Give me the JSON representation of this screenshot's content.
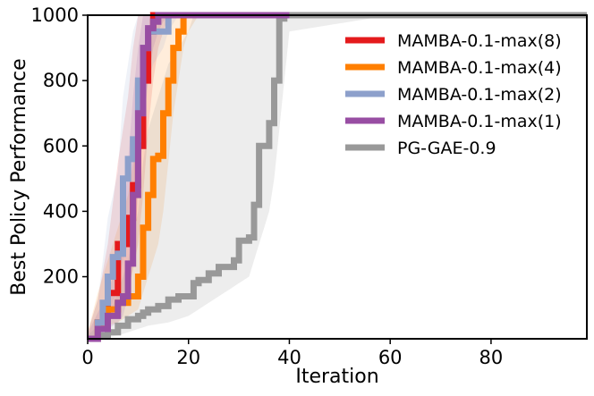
{
  "chart_data": {
    "type": "line",
    "title": "",
    "xlabel": "Iteration",
    "ylabel": "Best Policy Performance",
    "xlim": [
      0,
      99
    ],
    "ylim": [
      10,
      1000
    ],
    "xticks": [
      0,
      20,
      40,
      60,
      80
    ],
    "yticks": [
      200,
      400,
      600,
      800,
      1000
    ],
    "grid": false,
    "legend_position": "top-right",
    "series": [
      {
        "name": "MAMBA-0.1-max(8)",
        "color": "#e41a1c",
        "x": [
          0,
          2,
          4,
          6,
          8,
          9,
          10,
          11,
          12,
          13,
          14,
          15,
          16,
          18,
          20,
          40
        ],
        "y": [
          10,
          60,
          150,
          300,
          380,
          480,
          600,
          800,
          950,
          1000,
          1000,
          1000,
          1000,
          1000,
          1000,
          1000
        ],
        "band_lower": [
          10,
          20,
          60,
          120,
          160,
          220,
          300,
          450,
          650,
          800,
          900,
          950,
          1000,
          1000,
          1000,
          1000
        ],
        "band_upper": [
          30,
          130,
          300,
          550,
          750,
          900,
          1000,
          1000,
          1000,
          1000,
          1000,
          1000,
          1000,
          1000,
          1000,
          1000
        ]
      },
      {
        "name": "MAMBA-0.1-max(4)",
        "color": "#ff7f00",
        "x": [
          0,
          2,
          4,
          6,
          8,
          10,
          11,
          12,
          13,
          14,
          15,
          16,
          17,
          18,
          19,
          20,
          22,
          40
        ],
        "y": [
          10,
          60,
          100,
          120,
          140,
          200,
          350,
          450,
          560,
          570,
          700,
          800,
          900,
          950,
          1000,
          1000,
          1000,
          1000
        ],
        "band_lower": [
          10,
          20,
          50,
          60,
          80,
          100,
          150,
          200,
          250,
          300,
          400,
          550,
          700,
          800,
          900,
          950,
          1000,
          1000
        ],
        "band_upper": [
          30,
          150,
          250,
          350,
          450,
          650,
          800,
          900,
          950,
          1000,
          1000,
          1000,
          1000,
          1000,
          1000,
          1000,
          1000,
          1000
        ]
      },
      {
        "name": "MAMBA-0.1-max(2)",
        "color": "#8da0cb",
        "x": [
          0,
          2,
          3,
          4,
          5,
          6,
          7,
          8,
          9,
          10,
          11,
          12,
          13,
          15,
          16,
          18,
          20,
          40
        ],
        "y": [
          10,
          60,
          120,
          200,
          260,
          270,
          500,
          560,
          620,
          800,
          900,
          950,
          950,
          950,
          1000,
          1000,
          1000,
          1000
        ],
        "band_lower": [
          10,
          20,
          50,
          90,
          120,
          160,
          250,
          300,
          380,
          550,
          700,
          800,
          850,
          900,
          950,
          1000,
          1000,
          1000
        ],
        "band_upper": [
          30,
          130,
          250,
          380,
          450,
          520,
          750,
          850,
          950,
          1000,
          1000,
          1000,
          1000,
          1000,
          1000,
          1000,
          1000,
          1000
        ]
      },
      {
        "name": "MAMBA-0.1-max(1)",
        "color": "#984ea3",
        "x": [
          0,
          2,
          4,
          6,
          7,
          8,
          9,
          10,
          11,
          12,
          13,
          14,
          15,
          16,
          18,
          20,
          40
        ],
        "y": [
          10,
          40,
          80,
          120,
          140,
          240,
          450,
          700,
          900,
          960,
          980,
          1000,
          1000,
          1000,
          1000,
          1000,
          1000
        ],
        "band_lower": [
          10,
          15,
          40,
          60,
          80,
          140,
          250,
          450,
          650,
          800,
          900,
          950,
          980,
          1000,
          1000,
          1000,
          1000
        ],
        "band_upper": [
          25,
          90,
          150,
          250,
          350,
          550,
          750,
          900,
          1000,
          1000,
          1000,
          1000,
          1000,
          1000,
          1000,
          1000,
          1000
        ]
      },
      {
        "name": "PG-GAE-0.9",
        "color": "#999999",
        "x": [
          0,
          2,
          4,
          6,
          8,
          10,
          11,
          12,
          14,
          16,
          18,
          20,
          21,
          22,
          24,
          26,
          28,
          29,
          30,
          32,
          33,
          34,
          35,
          36,
          37,
          38,
          39,
          40,
          60,
          99
        ],
        "y": [
          10,
          20,
          30,
          50,
          70,
          80,
          90,
          100,
          110,
          130,
          140,
          140,
          180,
          190,
          210,
          230,
          230,
          250,
          310,
          320,
          420,
          600,
          600,
          670,
          800,
          990,
          1000,
          1000,
          1000,
          1000
        ],
        "band_lower": [
          10,
          12,
          15,
          20,
          30,
          40,
          45,
          50,
          55,
          60,
          70,
          80,
          90,
          100,
          120,
          140,
          160,
          170,
          180,
          200,
          250,
          300,
          350,
          400,
          500,
          650,
          800,
          950,
          1000,
          1000
        ],
        "band_upper": [
          20,
          50,
          80,
          150,
          250,
          400,
          550,
          650,
          750,
          850,
          900,
          950,
          1000,
          1000,
          1000,
          1000,
          1000,
          1000,
          1000,
          1000,
          1000,
          1000,
          1000,
          1000,
          1000,
          1000,
          1000,
          1000,
          1000,
          1000
        ]
      }
    ]
  }
}
